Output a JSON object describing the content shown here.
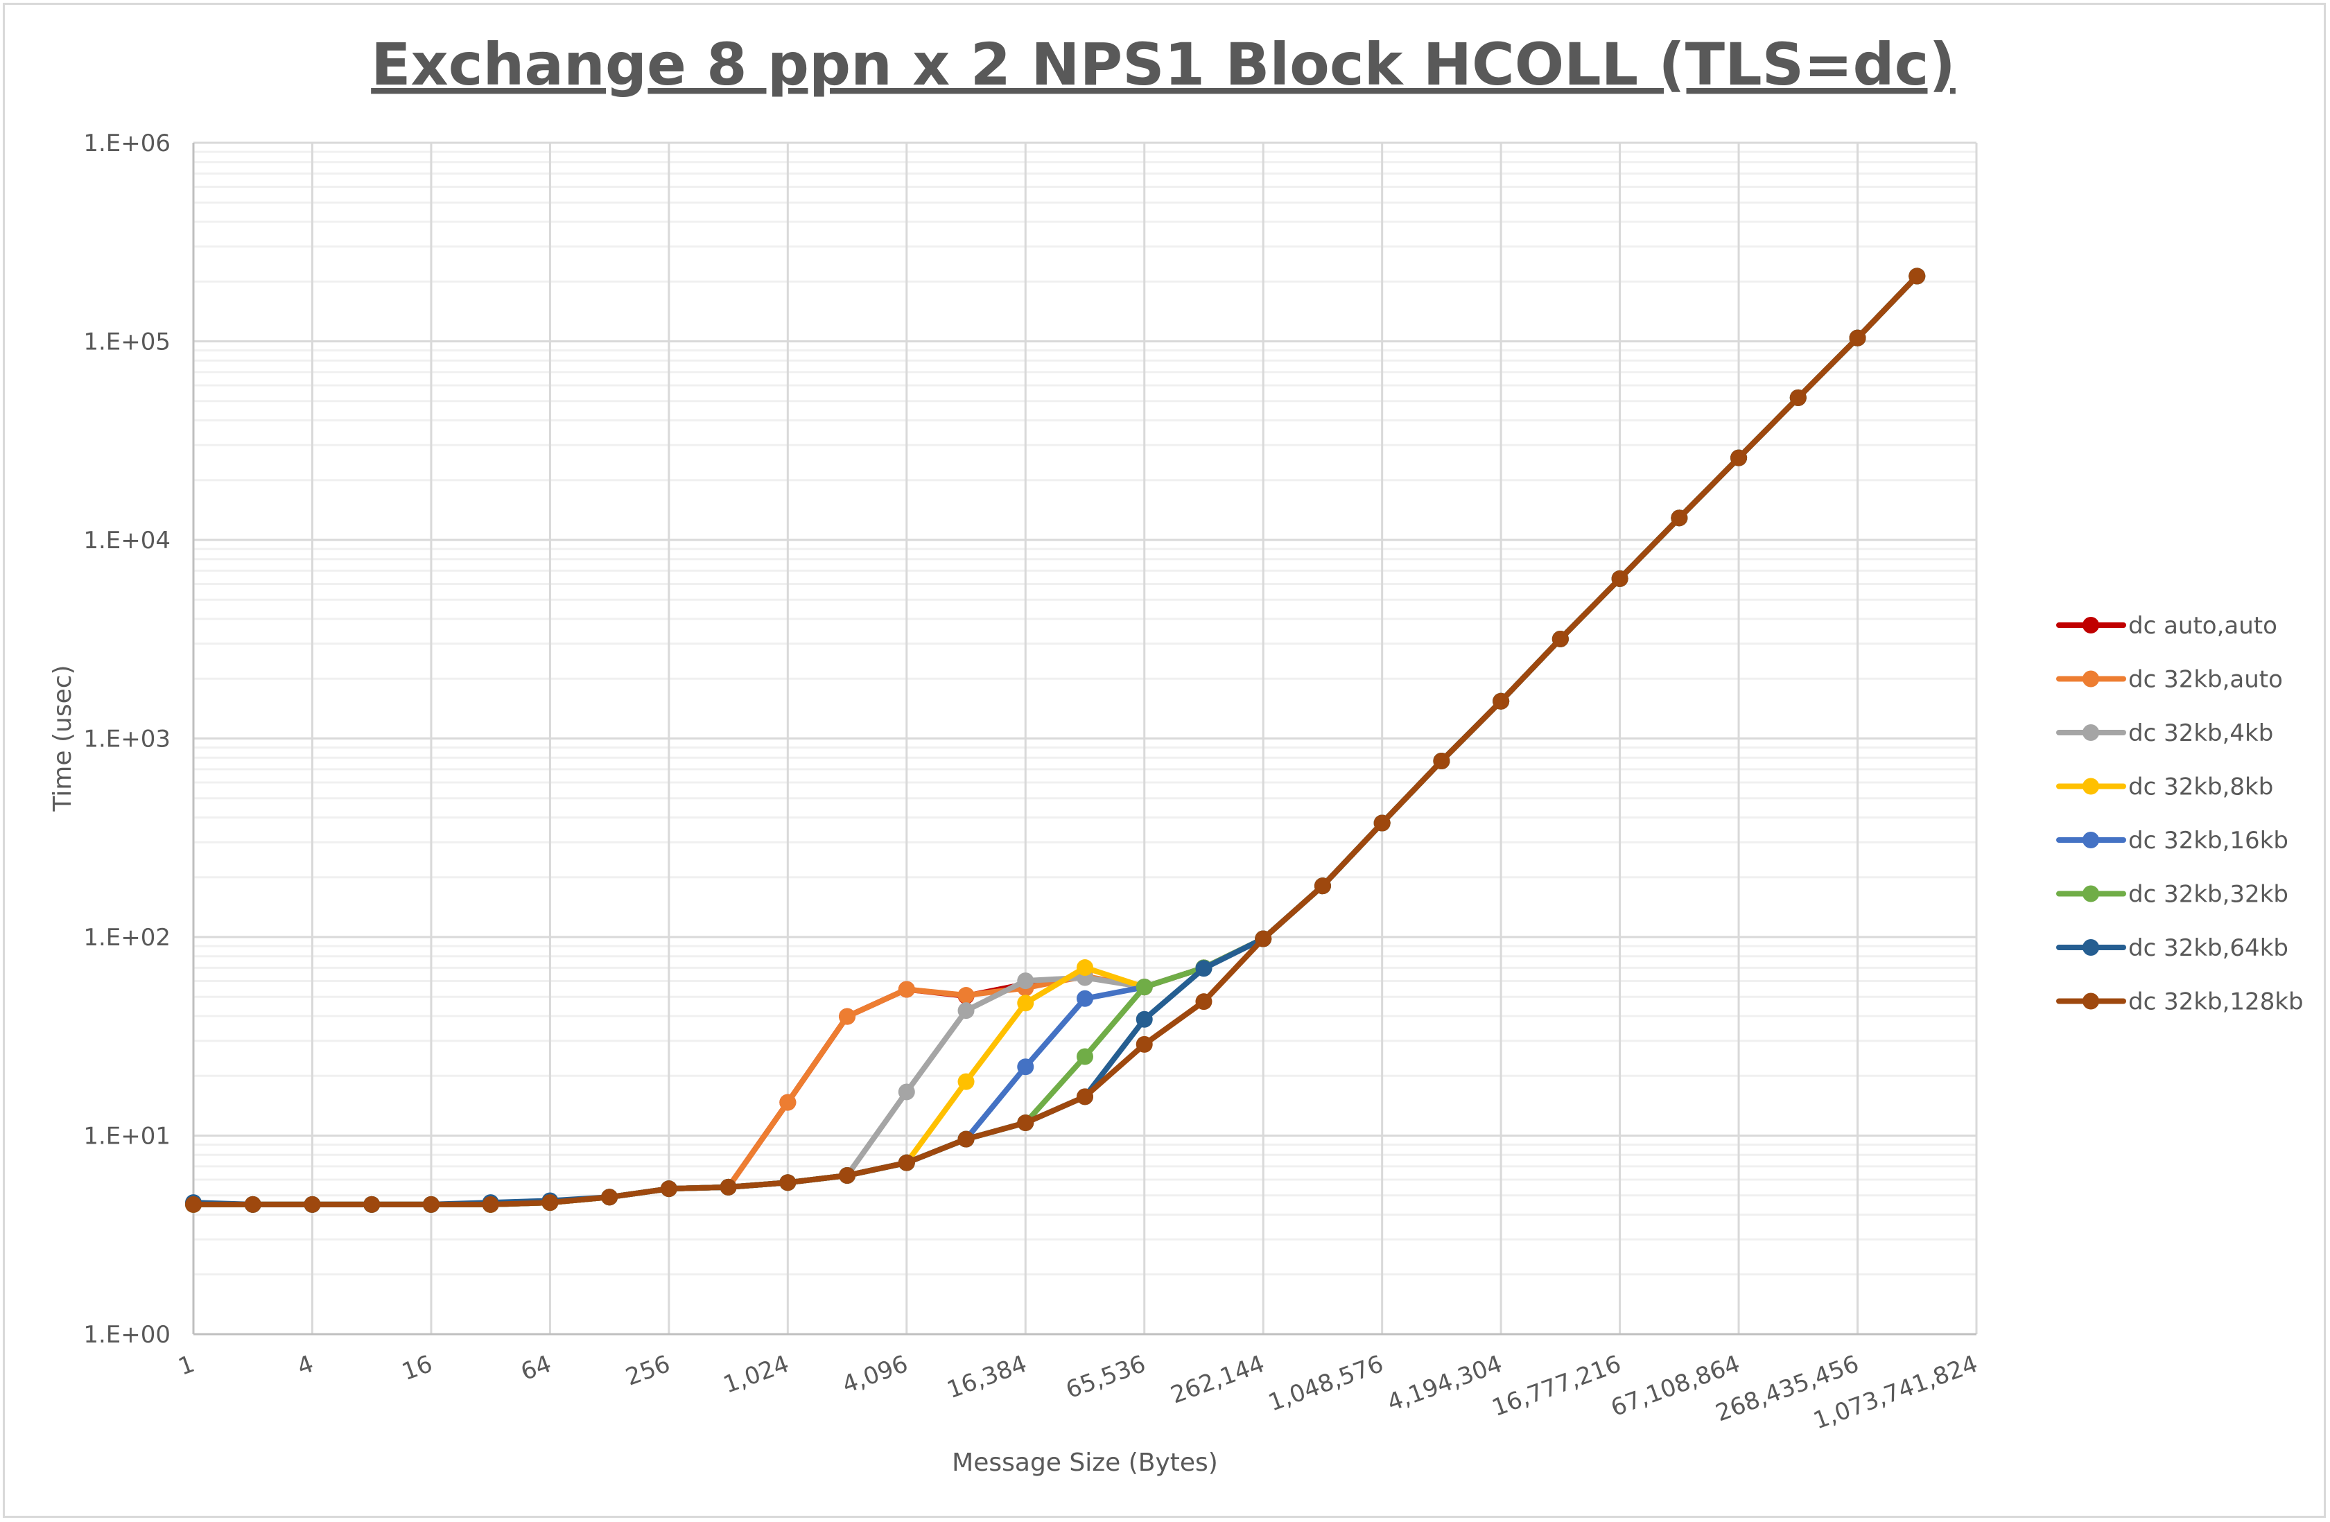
{
  "chart_data": {
    "type": "line",
    "title": "Exchange 8 ppn x 2 NPS1 Block HCOLL (TLS=dc)",
    "xlabel": "Message Size (Bytes)",
    "ylabel": "Time (usec)",
    "x_scale": "log2",
    "y_scale": "log10",
    "ylim": [
      1,
      1000000
    ],
    "grid": true,
    "legend_position": "right",
    "x": [
      1,
      2,
      4,
      8,
      16,
      32,
      64,
      128,
      256,
      512,
      1024,
      2048,
      4096,
      8192,
      16384,
      32768,
      65536,
      131072,
      262144,
      524288,
      1048576,
      2097152,
      4194304,
      8388608,
      16777216,
      33554432,
      67108864,
      134217728,
      268435456,
      536870912
    ],
    "x_tick_labels": [
      "1",
      "4",
      "16",
      "64",
      "256",
      "1,024",
      "4,096",
      "16,384",
      "65,536",
      "262,144",
      "1,048,576",
      "4,194,304",
      "16,777,216",
      "67,108,864",
      "268,435,456",
      "1,073,741,824"
    ],
    "y_tick_labels": [
      "1.E+00",
      "1.E+01",
      "1.E+02",
      "1.E+03",
      "1.E+04",
      "1.E+05",
      "1.E+06"
    ],
    "series": [
      {
        "name": "dc auto,auto",
        "color": "#C00000",
        "values": [
          4.5,
          4.5,
          4.5,
          4.5,
          4.5,
          4.5,
          4.6,
          4.9,
          5.4,
          5.5,
          14.7,
          39.8,
          54.5,
          50.5,
          58,
          63,
          56,
          70,
          98,
          181,
          375,
          770,
          1540,
          3170,
          6380,
          12900,
          25900,
          52000,
          104000,
          213000
        ]
      },
      {
        "name": "dc 32kb,auto",
        "color": "#ED7D31",
        "values": [
          4.5,
          4.5,
          4.5,
          4.5,
          4.5,
          4.5,
          4.6,
          4.9,
          5.4,
          5.5,
          14.7,
          39.8,
          54.5,
          50.9,
          55.4,
          63.5,
          56,
          70,
          98,
          181,
          375,
          770,
          1540,
          3170,
          6380,
          12900,
          25900,
          52000,
          104000,
          213000
        ]
      },
      {
        "name": "dc 32kb,4kb",
        "color": "#A5A5A5",
        "values": [
          4.5,
          4.5,
          4.5,
          4.5,
          4.5,
          4.5,
          4.6,
          4.9,
          5.4,
          5.5,
          5.8,
          6.3,
          16.6,
          42.6,
          60.2,
          62.5,
          56,
          70,
          98,
          181,
          375,
          770,
          1540,
          3170,
          6380,
          12900,
          25900,
          52000,
          104000,
          213000
        ]
      },
      {
        "name": "dc 32kb,8kb",
        "color": "#FFC000",
        "values": [
          4.5,
          4.5,
          4.5,
          4.5,
          4.5,
          4.5,
          4.6,
          4.9,
          5.4,
          5.5,
          5.8,
          6.3,
          7.3,
          18.7,
          46.5,
          70.2,
          56,
          70,
          98,
          181,
          375,
          770,
          1540,
          3170,
          6380,
          12900,
          25900,
          52000,
          104000,
          213000
        ]
      },
      {
        "name": "dc 32kb,16kb",
        "color": "#4472C4",
        "values": [
          4.5,
          4.5,
          4.5,
          4.5,
          4.5,
          4.5,
          4.6,
          4.9,
          5.4,
          5.5,
          5.8,
          6.3,
          7.3,
          9.6,
          22.2,
          49,
          56,
          70,
          98,
          181,
          375,
          770,
          1540,
          3170,
          6380,
          12900,
          25900,
          52000,
          104000,
          213000
        ]
      },
      {
        "name": "dc 32kb,32kb",
        "color": "#70AD47",
        "values": [
          4.5,
          4.5,
          4.5,
          4.5,
          4.5,
          4.5,
          4.6,
          4.9,
          5.4,
          5.5,
          5.8,
          6.3,
          7.3,
          9.6,
          11.6,
          25,
          56,
          70,
          98,
          181,
          375,
          770,
          1540,
          3170,
          6380,
          12900,
          25900,
          52000,
          104000,
          213000
        ]
      },
      {
        "name": "dc 32kb,64kb",
        "color": "#255E91",
        "values": [
          4.6,
          4.5,
          4.5,
          4.5,
          4.5,
          4.6,
          4.7,
          4.9,
          5.4,
          5.5,
          5.8,
          6.3,
          7.3,
          9.6,
          11.6,
          15.7,
          38.5,
          69.5,
          98,
          181,
          375,
          770,
          1540,
          3170,
          6380,
          12900,
          25900,
          52000,
          104000,
          213000
        ]
      },
      {
        "name": "dc 32kb,128kb",
        "color": "#9E480E",
        "values": [
          4.5,
          4.5,
          4.5,
          4.5,
          4.5,
          4.5,
          4.6,
          4.9,
          5.4,
          5.5,
          5.8,
          6.3,
          7.3,
          9.6,
          11.6,
          15.7,
          28.8,
          47.3,
          98,
          181,
          375,
          770,
          1540,
          3170,
          6380,
          12900,
          25900,
          52000,
          104000,
          213000
        ]
      }
    ]
  }
}
